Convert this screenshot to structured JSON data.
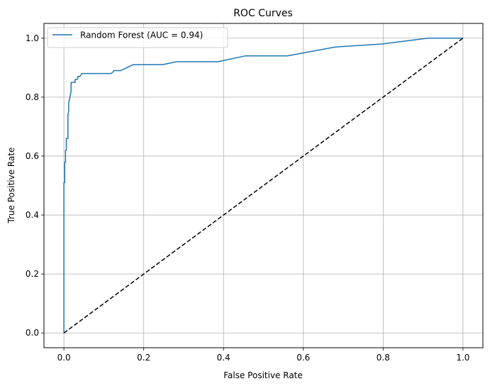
{
  "chart_data": {
    "type": "line",
    "title": "ROC Curves",
    "xlabel": "False Positive Rate",
    "ylabel": "True Positive Rate",
    "xlim": [
      -0.05,
      1.05
    ],
    "ylim": [
      -0.05,
      1.05
    ],
    "x_ticks": [
      0.0,
      0.2,
      0.4,
      0.6,
      0.8,
      1.0
    ],
    "y_ticks": [
      0.0,
      0.2,
      0.4,
      0.6,
      0.8,
      1.0
    ],
    "x_tick_labels": [
      "0.0",
      "0.2",
      "0.4",
      "0.6",
      "0.8",
      "1.0"
    ],
    "y_tick_labels": [
      "0.0",
      "0.2",
      "0.4",
      "0.6",
      "0.8",
      "1.0"
    ],
    "grid": true,
    "legend_position": "top-left",
    "series": [
      {
        "name": "Random Forest (AUC = 0.94)",
        "color": "#1f77b4",
        "line_style": "solid",
        "x": [
          0.0,
          0.0,
          0.002,
          0.002,
          0.004,
          0.004,
          0.006,
          0.006,
          0.01,
          0.01,
          0.012,
          0.012,
          0.015,
          0.018,
          0.018,
          0.028,
          0.028,
          0.033,
          0.035,
          0.035,
          0.04,
          0.045,
          0.048,
          0.052,
          0.118,
          0.123,
          0.125,
          0.14,
          0.142,
          0.158,
          0.173,
          0.247,
          0.282,
          0.386,
          0.455,
          0.56,
          0.68,
          0.795,
          0.913,
          1.0
        ],
        "y": [
          0.0,
          0.51,
          0.51,
          0.58,
          0.58,
          0.62,
          0.62,
          0.66,
          0.66,
          0.74,
          0.75,
          0.78,
          0.8,
          0.82,
          0.85,
          0.85,
          0.86,
          0.86,
          0.865,
          0.87,
          0.87,
          0.88,
          0.88,
          0.88,
          0.88,
          0.885,
          0.89,
          0.89,
          0.89,
          0.9,
          0.91,
          0.91,
          0.92,
          0.92,
          0.94,
          0.94,
          0.97,
          0.98,
          1.0,
          1.0
        ]
      },
      {
        "name": "",
        "color": "#000000",
        "line_style": "dashed",
        "x": [
          0.0,
          1.0
        ],
        "y": [
          0.0,
          1.0
        ]
      }
    ]
  }
}
